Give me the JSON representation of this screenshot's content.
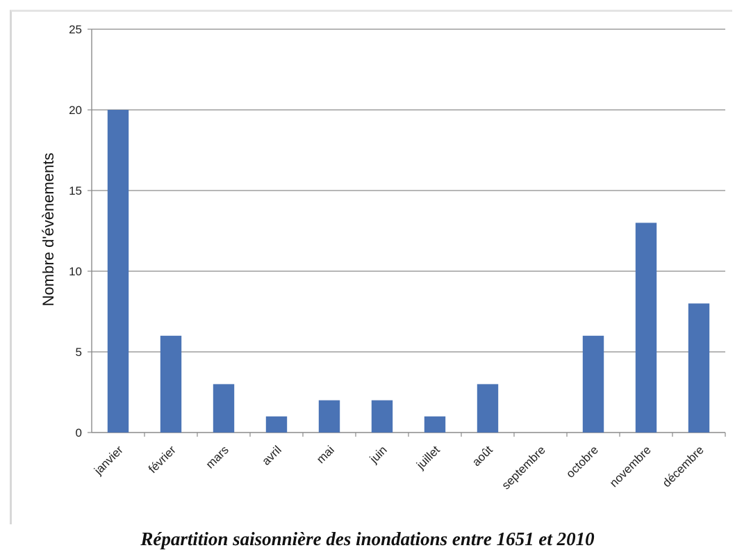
{
  "caption": "Répartition saisonnière des inondations entre 1651 et 2010",
  "chart_data": {
    "type": "bar",
    "title": "",
    "xlabel": "",
    "ylabel": "Nombre d'évènements",
    "categories": [
      "janvier",
      "février",
      "mars",
      "avril",
      "mai",
      "juin",
      "juillet",
      "août",
      "septembre",
      "octobre",
      "novembre",
      "décembre"
    ],
    "values": [
      20,
      6,
      3,
      1,
      2,
      2,
      1,
      3,
      0,
      6,
      13,
      8
    ],
    "ylim": [
      0,
      25
    ],
    "yticks": [
      "0",
      "5",
      "10",
      "15",
      "20",
      "25"
    ],
    "grid": true,
    "legend": "none",
    "colors": {
      "bar": "#4a73b5",
      "grid": "#8a8a8a"
    }
  }
}
